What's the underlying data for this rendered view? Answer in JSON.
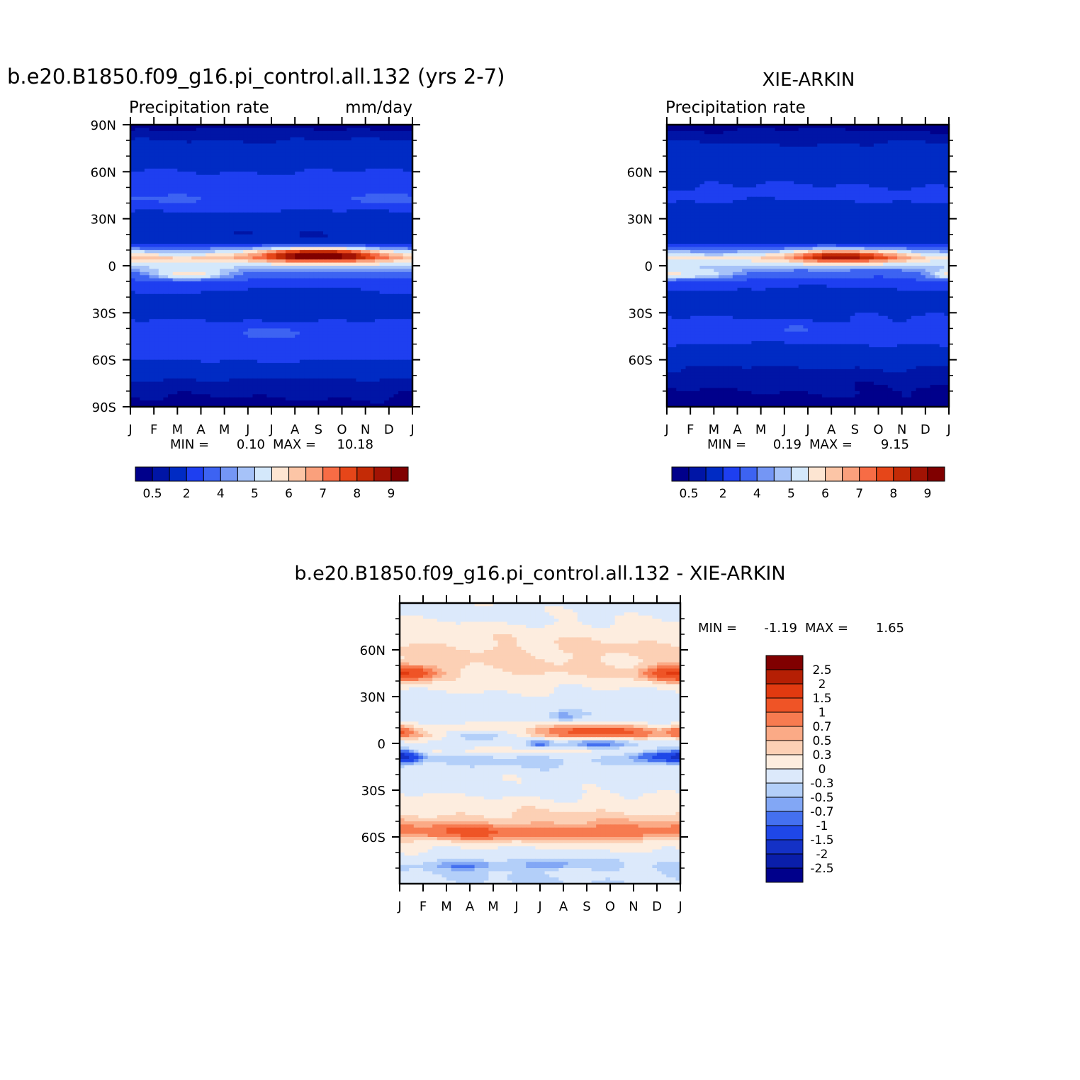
{
  "panels": [
    {
      "title": "b.e20.B1850.f09_g16.pi_control.all.132 (yrs 2-7)",
      "left_label": "Precipitation rate",
      "right_label": "mm/day",
      "stats": {
        "min_label": "MIN =",
        "min": "0.10",
        "max_label": "MAX =",
        "max": "10.18"
      }
    },
    {
      "title": "XIE-ARKIN",
      "left_label": "Precipitation rate",
      "right_label": "",
      "stats": {
        "min_label": "MIN =",
        "min": "0.19",
        "max_label": "MAX =",
        "max": "9.15"
      }
    },
    {
      "title": "b.e20.B1850.f09_g16.pi_control.all.132 - XIE-ARKIN",
      "left_label": "",
      "right_label": "",
      "stats": {
        "min_label": "MIN =",
        "min": "-1.19",
        "max_label": "MAX =",
        "max": "1.65"
      }
    }
  ],
  "chart_data": [
    {
      "type": "heatmap",
      "title": "b.e20.B1850.f09_g16.pi_control.all.132 (yrs 2-7)",
      "subtitle": "Precipitation rate",
      "units": "mm/day",
      "x_ticks": [
        "J",
        "F",
        "M",
        "A",
        "M",
        "J",
        "J",
        "A",
        "S",
        "O",
        "N",
        "D",
        "J"
      ],
      "y_ticks": [
        "90N",
        "60N",
        "30N",
        "0",
        "30S",
        "60S",
        "90S"
      ],
      "ylim": [
        -90,
        90
      ],
      "min": 0.1,
      "max": 10.18,
      "colorbar_labels": [
        "0.5",
        "2",
        "4",
        "5",
        "6",
        "7",
        "8",
        "9"
      ],
      "profile": {
        "lat": [
          90,
          80,
          70,
          60,
          45,
          30,
          20,
          15,
          10,
          5,
          0,
          -5,
          -10,
          -20,
          -30,
          -45,
          -55,
          -65,
          -75,
          -90
        ],
        "value": [
          0.3,
          1.0,
          1.6,
          2.0,
          2.6,
          1.7,
          1.0,
          1.4,
          4.5,
          6.0,
          5.0,
          3.5,
          2.6,
          1.8,
          1.6,
          2.8,
          2.5,
          1.6,
          0.8,
          0.3
        ]
      },
      "features": [
        {
          "lat": 7,
          "month": 8,
          "width": 2.6,
          "height": 4.5,
          "amp": 4.2
        },
        {
          "lat": -6,
          "month": 2.5,
          "width": 1.8,
          "height": 4,
          "amp": 2.5
        },
        {
          "lat": -17,
          "month": 7.5,
          "width": 2.5,
          "height": 4,
          "amp": -0.6
        },
        {
          "lat": -42,
          "month": 6,
          "width": 1.2,
          "height": 3,
          "amp": 1.0
        },
        {
          "lat": 42,
          "month": 2,
          "width": 2.2,
          "height": 4,
          "amp": 0.7
        },
        {
          "lat": 42,
          "month": 10.5,
          "width": 1.6,
          "height": 4,
          "amp": 0.8
        }
      ]
    },
    {
      "type": "heatmap",
      "title": "XIE-ARKIN",
      "subtitle": "Precipitation rate",
      "x_ticks": [
        "J",
        "F",
        "M",
        "A",
        "M",
        "J",
        "J",
        "A",
        "S",
        "O",
        "N",
        "D",
        "J"
      ],
      "y_ticks": [
        "60N",
        "30N",
        "0",
        "30S",
        "60S"
      ],
      "ylim": [
        -90,
        90
      ],
      "min": 0.19,
      "max": 9.15,
      "colorbar_labels": [
        "0.5",
        "2",
        "4",
        "5",
        "6",
        "7",
        "8",
        "9"
      ],
      "profile": {
        "lat": [
          90,
          80,
          70,
          60,
          45,
          30,
          20,
          15,
          10,
          5,
          0,
          -5,
          -10,
          -20,
          -30,
          -45,
          -55,
          -65,
          -75,
          -90
        ],
        "value": [
          0.3,
          0.9,
          1.4,
          1.7,
          2.2,
          1.4,
          1.2,
          1.6,
          4.2,
          5.6,
          4.8,
          3.4,
          2.5,
          1.6,
          1.9,
          2.3,
          1.7,
          1.0,
          0.6,
          0.3
        ]
      },
      "features": [
        {
          "lat": 6,
          "month": 7.5,
          "width": 2.4,
          "height": 4.5,
          "amp": 3.4
        },
        {
          "lat": -6,
          "month": 1.5,
          "width": 1.8,
          "height": 4,
          "amp": 2.0
        },
        {
          "lat": -6,
          "month": 11.8,
          "width": 0.9,
          "height": 4,
          "amp": 1.5
        },
        {
          "lat": -17,
          "month": 7,
          "width": 2,
          "height": 4,
          "amp": -0.6
        },
        {
          "lat": -40,
          "month": 5.5,
          "width": 1.6,
          "height": 3,
          "amp": 0.9
        },
        {
          "lat": 38,
          "month": 4.5,
          "width": 1.2,
          "height": 3,
          "amp": -0.5
        }
      ]
    },
    {
      "type": "heatmap",
      "title": "b.e20.B1850.f09_g16.pi_control.all.132 - XIE-ARKIN",
      "x_ticks": [
        "J",
        "F",
        "M",
        "A",
        "M",
        "J",
        "J",
        "A",
        "S",
        "O",
        "N",
        "D",
        "J"
      ],
      "y_ticks": [
        "60N",
        "30N",
        "0",
        "30S",
        "60S"
      ],
      "ylim": [
        -90,
        90
      ],
      "min": -1.19,
      "max": 1.65,
      "colorbar_labels": [
        "2.5",
        "2",
        "1.5",
        "1",
        "0.7",
        "0.5",
        "0.3",
        "0",
        "-0.3",
        "-0.5",
        "-0.7",
        "-1",
        "-1.5",
        "-2",
        "-2.5"
      ],
      "profile": {
        "lat": [
          90,
          80,
          70,
          60,
          45,
          30,
          20,
          15,
          10,
          5,
          0,
          -5,
          -10,
          -20,
          -30,
          -45,
          -55,
          -65,
          -75,
          -90
        ],
        "value": [
          -0.1,
          -0.05,
          0.2,
          0.35,
          0.3,
          -0.1,
          -0.2,
          -0.15,
          0.2,
          0.4,
          -0.2,
          0.05,
          -0.4,
          -0.1,
          -0.1,
          0.3,
          0.6,
          0.1,
          -0.25,
          -0.3
        ]
      },
      "features": [
        {
          "lat": 8,
          "month": 8.5,
          "width": 2.4,
          "height": 4,
          "amp": 0.9
        },
        {
          "lat": 8,
          "month": 0,
          "width": 0.6,
          "height": 4,
          "amp": 0.6
        },
        {
          "lat": 45,
          "month": 0.5,
          "width": 1.2,
          "height": 5,
          "amp": 0.8
        },
        {
          "lat": 45,
          "month": 11.5,
          "width": 1.2,
          "height": 5,
          "amp": 0.8
        },
        {
          "lat": -58,
          "month": 3,
          "width": 2.5,
          "height": 5,
          "amp": 0.6
        },
        {
          "lat": -58,
          "month": 9,
          "width": 2.5,
          "height": 5,
          "amp": 0.5
        },
        {
          "lat": -8,
          "month": 0.3,
          "width": 0.6,
          "height": 4,
          "amp": -0.9
        },
        {
          "lat": -8,
          "month": 11.3,
          "width": 1.2,
          "height": 4,
          "amp": -1.0
        },
        {
          "lat": 5,
          "month": 3.5,
          "width": 1.5,
          "height": 3,
          "amp": -0.9
        },
        {
          "lat": 0,
          "month": 6,
          "width": 0.5,
          "height": 3,
          "amp": -0.6
        },
        {
          "lat": 0,
          "month": 8.5,
          "width": 1.5,
          "height": 3,
          "amp": -0.6
        },
        {
          "lat": 17,
          "month": 7,
          "width": 0.5,
          "height": 3,
          "amp": -0.5
        },
        {
          "lat": -78,
          "month": 3,
          "width": 1.5,
          "height": 3,
          "amp": -0.5
        },
        {
          "lat": -78,
          "month": 6.5,
          "width": 1.5,
          "height": 3,
          "amp": -0.4
        }
      ]
    }
  ],
  "colors": {
    "precip_levels": [
      0.5,
      1,
      2,
      3,
      4,
      4.5,
      5,
      5.5,
      6,
      6.5,
      7,
      7.5,
      8,
      8.5,
      9
    ],
    "precip_palette": [
      "#00008b",
      "#0015a6",
      "#002bc4",
      "#1e3ff0",
      "#3d63f2",
      "#7496f5",
      "#a6c2f8",
      "#d4e8fb",
      "#fde5d2",
      "#fcc5a6",
      "#faa07c",
      "#f76c45",
      "#e64619",
      "#c42b06",
      "#a21304",
      "#800000"
    ],
    "diff_levels": [
      -2.5,
      -2,
      -1.5,
      -1,
      -0.7,
      -0.5,
      -0.3,
      0,
      0.3,
      0.5,
      0.7,
      1,
      1.5,
      2,
      2.5
    ],
    "diff_palette": [
      "#00008b",
      "#0a1eaa",
      "#1431c6",
      "#1f47e8",
      "#4470f0",
      "#82a7f5",
      "#b3cff9",
      "#dce9fb",
      "#fdeddf",
      "#fcd0b5",
      "#fbaa86",
      "#f77b50",
      "#ef5426",
      "#e13a10",
      "#b51f04",
      "#800000"
    ]
  }
}
